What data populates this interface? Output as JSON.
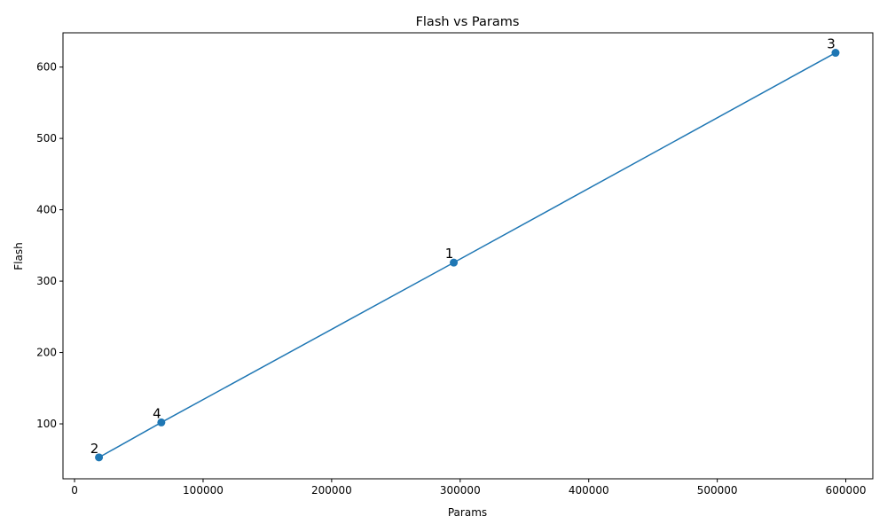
{
  "chart_data": {
    "type": "line",
    "title": "Flash vs Params",
    "xlabel": "Params",
    "ylabel": "Flash",
    "xlim": [
      -9000,
      621000
    ],
    "ylim": [
      23,
      648
    ],
    "xticks": [
      0,
      100000,
      200000,
      300000,
      400000,
      500000,
      600000
    ],
    "yticks": [
      100,
      200,
      300,
      400,
      500,
      600
    ],
    "grid": false,
    "line_color": "#1f77b4",
    "series": [
      {
        "points": [
          {
            "label": "2",
            "x": 19000,
            "y": 53
          },
          {
            "label": "4",
            "x": 67500,
            "y": 102
          },
          {
            "label": "1",
            "x": 295000,
            "y": 326
          },
          {
            "label": "3",
            "x": 592000,
            "y": 620
          }
        ]
      }
    ]
  }
}
